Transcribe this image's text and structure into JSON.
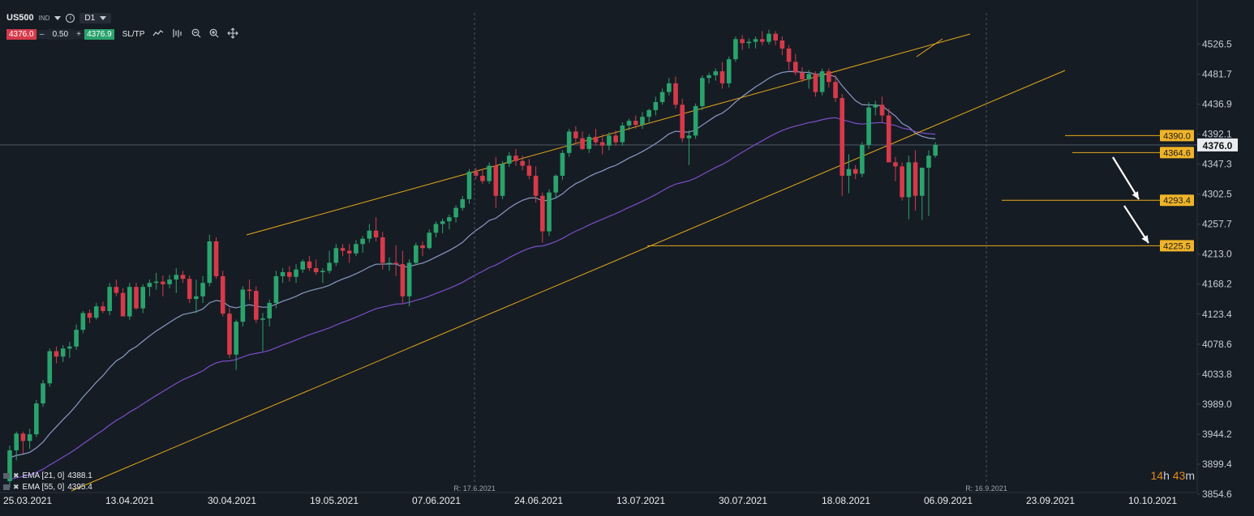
{
  "toolbar": {
    "symbol": "US500",
    "instrument_type": "IND",
    "timeframe": "D1",
    "sell_price": "4376.0",
    "lot_size": "0.50",
    "buy_price": "4376.9",
    "sl_tp": "SL/TP",
    "minus": "–",
    "plus": "+"
  },
  "timer": {
    "hours": "14",
    "h": "h",
    "minutes": "43",
    "m": "m"
  },
  "colors": {
    "background": "#161c24",
    "up": "#2aa36d",
    "down": "#d63a4a",
    "ema21": "#8a9bc4",
    "ema55": "#7a4fc8",
    "trendline": "#e3a91a",
    "level_box": "#f0b429",
    "current_price_box": "#e8ecf0"
  },
  "chart_data": {
    "type": "candlestick",
    "y_ticks": [
      "4526.5",
      "4481.7",
      "4436.9",
      "4392.1",
      "4347.3",
      "4302.5",
      "4257.7",
      "4213.0",
      "4168.2",
      "4123.4",
      "4078.6",
      "4033.8",
      "3989.0",
      "3944.2",
      "3899.4",
      "3854.6"
    ],
    "ylim": [
      3844,
      4572
    ],
    "x_ticks": [
      "25.03.2021",
      "13.04.2021",
      "30.04.2021",
      "19.05.2021",
      "07.06.2021",
      "24.06.2021",
      "13.07.2021",
      "30.07.2021",
      "18.08.2021",
      "06.09.2021",
      "23.09.2021",
      "10.10.2021"
    ],
    "current_price": "4376.0",
    "levels": [
      {
        "label": "4390.0",
        "value": 4390.0
      },
      {
        "label": "4364.6",
        "value": 4364.6
      },
      {
        "label": "4293.4",
        "value": 4293.4
      },
      {
        "label": "4225.5",
        "value": 4225.5
      }
    ],
    "rollover_markers": [
      "R: 17.6.2021",
      "R: 16.9.2021"
    ],
    "indicators": [
      {
        "name": "EMA [21, 0]",
        "value": "4388.1"
      },
      {
        "name": "EMA [55, 0]",
        "value": "4395.4"
      }
    ],
    "candles": [
      [
        3874,
        3927,
        3864,
        3920
      ],
      [
        3920,
        3948,
        3905,
        3945
      ],
      [
        3945,
        3948,
        3915,
        3934
      ],
      [
        3934,
        3952,
        3922,
        3944
      ],
      [
        3944,
        3995,
        3940,
        3990
      ],
      [
        3990,
        4025,
        3985,
        4020
      ],
      [
        4020,
        4072,
        4015,
        4068
      ],
      [
        4068,
        4075,
        4050,
        4060
      ],
      [
        4060,
        4077,
        4052,
        4072
      ],
      [
        4072,
        4082,
        4058,
        4075
      ],
      [
        4075,
        4108,
        4070,
        4100
      ],
      [
        4100,
        4128,
        4095,
        4125
      ],
      [
        4125,
        4130,
        4110,
        4118
      ],
      [
        4118,
        4140,
        4115,
        4135
      ],
      [
        4135,
        4142,
        4125,
        4128
      ],
      [
        4128,
        4170,
        4122,
        4164
      ],
      [
        4164,
        4175,
        4150,
        4155
      ],
      [
        4155,
        4162,
        4120,
        4120
      ],
      [
        4120,
        4170,
        4115,
        4164
      ],
      [
        4164,
        4170,
        4130,
        4132
      ],
      [
        4132,
        4168,
        4125,
        4164
      ],
      [
        4164,
        4175,
        4150,
        4170
      ],
      [
        4170,
        4185,
        4160,
        4172
      ],
      [
        4172,
        4181,
        4150,
        4168
      ],
      [
        4168,
        4182,
        4162,
        4175
      ],
      [
        4175,
        4192,
        4155,
        4182
      ],
      [
        4182,
        4188,
        4170,
        4176
      ],
      [
        4176,
        4181,
        4140,
        4146
      ],
      [
        4146,
        4175,
        4125,
        4150
      ],
      [
        4150,
        4180,
        4140,
        4170
      ],
      [
        4170,
        4242,
        4165,
        4232
      ],
      [
        4232,
        4238,
        4176,
        4180
      ],
      [
        4180,
        4188,
        4120,
        4124
      ],
      [
        4124,
        4133,
        4058,
        4063
      ],
      [
        4063,
        4115,
        4040,
        4112
      ],
      [
        4112,
        4165,
        4105,
        4160
      ],
      [
        4160,
        4175,
        4145,
        4158
      ],
      [
        4158,
        4165,
        4110,
        4115
      ],
      [
        4115,
        4125,
        4068,
        4117
      ],
      [
        4117,
        4145,
        4105,
        4140
      ],
      [
        4140,
        4188,
        4132,
        4180
      ],
      [
        4180,
        4192,
        4170,
        4186
      ],
      [
        4186,
        4195,
        4172,
        4179
      ],
      [
        4179,
        4198,
        4170,
        4190
      ],
      [
        4190,
        4205,
        4185,
        4202
      ],
      [
        4202,
        4210,
        4188,
        4192
      ],
      [
        4192,
        4205,
        4182,
        4186
      ],
      [
        4186,
        4192,
        4170,
        4188
      ],
      [
        4188,
        4218,
        4184,
        4200
      ],
      [
        4200,
        4228,
        4195,
        4222
      ],
      [
        4222,
        4228,
        4210,
        4218
      ],
      [
        4218,
        4228,
        4200,
        4214
      ],
      [
        4214,
        4234,
        4210,
        4228
      ],
      [
        4228,
        4240,
        4215,
        4236
      ],
      [
        4236,
        4258,
        4230,
        4248
      ],
      [
        4248,
        4268,
        4232,
        4238
      ],
      [
        4238,
        4246,
        4190,
        4200
      ],
      [
        4200,
        4208,
        4188,
        4200
      ],
      [
        4200,
        4226,
        4180,
        4198
      ],
      [
        4198,
        4218,
        4140,
        4150
      ],
      [
        4150,
        4205,
        4135,
        4200
      ],
      [
        4200,
        4230,
        4196,
        4226
      ],
      [
        4226,
        4232,
        4210,
        4222
      ],
      [
        4222,
        4250,
        4220,
        4245
      ],
      [
        4245,
        4262,
        4238,
        4258
      ],
      [
        4258,
        4266,
        4244,
        4262
      ],
      [
        4262,
        4272,
        4250,
        4268
      ],
      [
        4268,
        4286,
        4260,
        4282
      ],
      [
        4282,
        4300,
        4278,
        4295
      ],
      [
        4295,
        4340,
        4288,
        4336
      ],
      [
        4336,
        4342,
        4325,
        4330
      ],
      [
        4330,
        4340,
        4318,
        4322
      ],
      [
        4322,
        4350,
        4318,
        4345
      ],
      [
        4345,
        4358,
        4282,
        4300
      ],
      [
        4300,
        4352,
        4295,
        4348
      ],
      [
        4348,
        4365,
        4343,
        4360
      ],
      [
        4360,
        4370,
        4345,
        4352
      ],
      [
        4352,
        4360,
        4338,
        4345
      ],
      [
        4345,
        4355,
        4325,
        4330
      ],
      [
        4330,
        4344,
        4290,
        4300
      ],
      [
        4300,
        4305,
        4230,
        4247
      ],
      [
        4247,
        4310,
        4240,
        4305
      ],
      [
        4305,
        4332,
        4298,
        4330
      ],
      [
        4330,
        4368,
        4324,
        4364
      ],
      [
        4364,
        4400,
        4358,
        4396
      ],
      [
        4396,
        4404,
        4378,
        4386
      ],
      [
        4386,
        4396,
        4368,
        4370
      ],
      [
        4370,
        4392,
        4364,
        4388
      ],
      [
        4388,
        4400,
        4375,
        4380
      ],
      [
        4380,
        4392,
        4362,
        4375
      ],
      [
        4375,
        4395,
        4368,
        4390
      ],
      [
        4390,
        4398,
        4375,
        4380
      ],
      [
        4380,
        4410,
        4375,
        4405
      ],
      [
        4405,
        4415,
        4398,
        4412
      ],
      [
        4412,
        4420,
        4400,
        4406
      ],
      [
        4406,
        4425,
        4400,
        4418
      ],
      [
        4418,
        4430,
        4410,
        4428
      ],
      [
        4428,
        4448,
        4420,
        4440
      ],
      [
        4440,
        4460,
        4436,
        4455
      ],
      [
        4455,
        4476,
        4450,
        4468
      ],
      [
        4468,
        4478,
        4430,
        4436
      ],
      [
        4436,
        4445,
        4380,
        4386
      ],
      [
        4386,
        4398,
        4346,
        4390
      ],
      [
        4390,
        4438,
        4385,
        4434
      ],
      [
        4434,
        4480,
        4428,
        4476
      ],
      [
        4476,
        4484,
        4468,
        4480
      ],
      [
        4480,
        4490,
        4472,
        4486
      ],
      [
        4486,
        4500,
        4460,
        4468
      ],
      [
        4468,
        4508,
        4462,
        4504
      ],
      [
        4504,
        4538,
        4500,
        4534
      ],
      [
        4534,
        4540,
        4518,
        4528
      ],
      [
        4528,
        4535,
        4520,
        4530
      ],
      [
        4530,
        4538,
        4520,
        4534
      ],
      [
        4534,
        4546,
        4525,
        4530
      ],
      [
        4530,
        4548,
        4526,
        4542
      ],
      [
        4542,
        4546,
        4525,
        4532
      ],
      [
        4532,
        4538,
        4510,
        4520
      ],
      [
        4520,
        4525,
        4488,
        4500
      ],
      [
        4500,
        4512,
        4480,
        4484
      ],
      [
        4484,
        4492,
        4470,
        4474
      ],
      [
        4474,
        4488,
        4460,
        4482
      ],
      [
        4482,
        4486,
        4448,
        4455
      ],
      [
        4455,
        4490,
        4450,
        4486
      ],
      [
        4486,
        4490,
        4462,
        4470
      ],
      [
        4470,
        4480,
        4440,
        4446
      ],
      [
        4446,
        4452,
        4300,
        4330
      ],
      [
        4330,
        4362,
        4304,
        4340
      ],
      [
        4340,
        4346,
        4325,
        4333
      ],
      [
        4333,
        4380,
        4328,
        4376
      ],
      [
        4376,
        4440,
        4370,
        4432
      ],
      [
        4432,
        4442,
        4420,
        4436
      ],
      [
        4436,
        4448,
        4410,
        4420
      ],
      [
        4420,
        4430,
        4350,
        4350
      ],
      [
        4350,
        4358,
        4322,
        4344
      ],
      [
        4344,
        4350,
        4293,
        4298
      ],
      [
        4298,
        4360,
        4265,
        4350
      ],
      [
        4350,
        4368,
        4278,
        4300
      ],
      [
        4300,
        4342,
        4264,
        4342
      ],
      [
        4342,
        4368,
        4270,
        4360
      ],
      [
        4360,
        4380,
        4357,
        4376
      ]
    ]
  }
}
